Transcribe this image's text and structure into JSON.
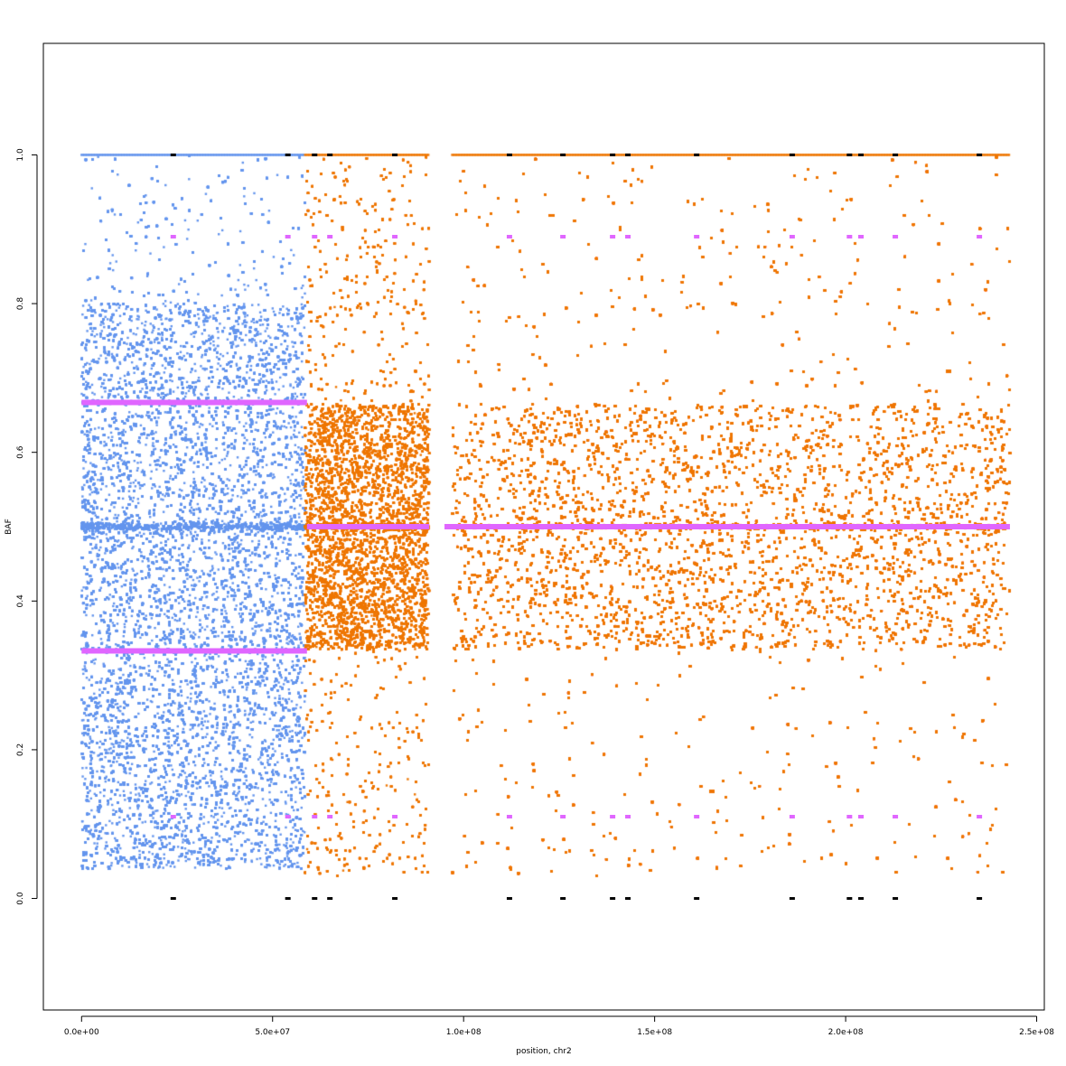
{
  "chart_data": {
    "type": "scatter",
    "title": "",
    "xlabel": "position, chr2",
    "ylabel": "BAF",
    "xlim": [
      -10000000,
      252000000
    ],
    "ylim": [
      -0.15,
      1.15
    ],
    "x_ticks": [
      0,
      50000000,
      100000000,
      150000000,
      200000000,
      250000000
    ],
    "x_tick_labels": [
      "0.0e+00",
      "5.0e+07",
      "1.0e+08",
      "1.5e+08",
      "2.0e+08",
      "2.5e+08"
    ],
    "y_ticks": [
      0.0,
      0.2,
      0.4,
      0.6,
      0.8,
      1.0
    ],
    "y_tick_labels": [
      "0.0",
      "0.2",
      "0.4",
      "0.6",
      "0.8",
      "1.0"
    ],
    "grid": false,
    "legend": "none",
    "colors": {
      "region_a": "#6495ed",
      "region_b": "#ee7600",
      "segment": "#e066ff",
      "homozygous": "#000000"
    },
    "series": [
      {
        "color_key": "region_a",
        "x_range": [
          0,
          58500000
        ],
        "density": "very high",
        "baf_band_mean": [
          0.333,
          0.5,
          0.667
        ]
      },
      {
        "color_key": "region_b",
        "x_range": [
          58500000,
          91000000
        ],
        "density": "very high",
        "baf_band_mean": [
          0.5
        ]
      },
      {
        "color_key": "region_b",
        "x_range": [
          97000000,
          243000000
        ],
        "density": "very high",
        "baf_band_mean": [
          0.5
        ]
      }
    ],
    "segments": [
      {
        "x_start": 0,
        "x_end": 59000000,
        "y": 0.667
      },
      {
        "x_start": 0,
        "x_end": 59000000,
        "y": 0.333
      },
      {
        "x_start": 59000000,
        "x_end": 91000000,
        "y": 0.5
      },
      {
        "x_start": 95000000,
        "x_end": 243000000,
        "y": 0.5
      }
    ],
    "marker_positions": [
      24000000,
      54000000,
      61000000,
      65000000,
      82000000,
      112000000,
      126000000,
      139000000,
      143000000,
      161000000,
      186000000,
      201000000,
      204000000,
      213000000,
      235000000
    ]
  }
}
